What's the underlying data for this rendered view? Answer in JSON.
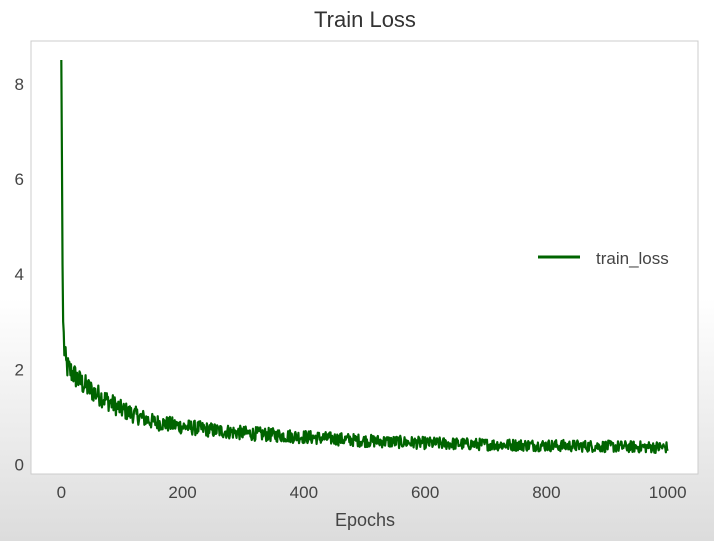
{
  "chart_data": {
    "type": "line",
    "title": "Train Loss",
    "xlabel": "Epochs",
    "ylabel": "",
    "xlim": [
      -50,
      1050
    ],
    "ylim": [
      -0.2,
      8.9
    ],
    "x_ticks": [
      0,
      200,
      400,
      600,
      800,
      1000
    ],
    "x_tick_labels": [
      "0",
      "200",
      "400",
      "600",
      "800",
      "1000"
    ],
    "y_ticks": [
      0,
      2,
      4,
      6,
      8
    ],
    "y_tick_labels": [
      "0",
      "2",
      "4",
      "6",
      "8"
    ],
    "grid": false,
    "legend_position": "center-right",
    "series": [
      {
        "name": "train_loss",
        "color": "#006400",
        "x": [
          0,
          1,
          2,
          3,
          5,
          8,
          12,
          20,
          30,
          50,
          75,
          100,
          150,
          200,
          250,
          300,
          400,
          500,
          600,
          700,
          800,
          900,
          1000
        ],
        "values": [
          8.5,
          6.5,
          4.2,
          3.0,
          2.4,
          2.1,
          2.0,
          1.9,
          1.75,
          1.55,
          1.35,
          1.15,
          0.9,
          0.8,
          0.72,
          0.66,
          0.58,
          0.5,
          0.45,
          0.42,
          0.4,
          0.38,
          0.36
        ]
      }
    ]
  }
}
